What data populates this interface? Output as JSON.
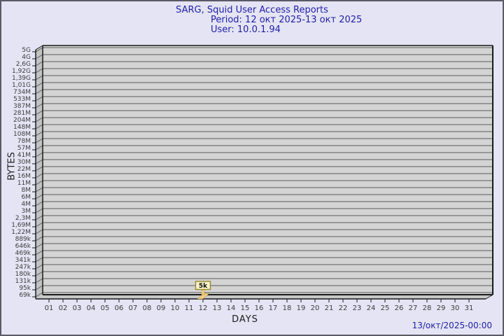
{
  "header": {
    "title": "SARG, Squid User Access Reports",
    "period": "Period: 12 окт 2025-13 окт 2025",
    "user": "User: 10.0.1.94"
  },
  "footer": {
    "timestamp": "13/окт/2025-00:00"
  },
  "chart_data": {
    "type": "bar",
    "title": "SARG, Squid User Access Reports",
    "subtitle": [
      "Period: 12 окт 2025-13 окт 2025",
      "User: 10.0.1.94"
    ],
    "xlabel": "DAYS",
    "ylabel": "BYTES",
    "grid": true,
    "legend": "none",
    "y_tick_labels": [
      "5G",
      "4G",
      "2,6G",
      "1,92G",
      "1,39G",
      "1,01G",
      "734M",
      "533M",
      "387M",
      "281M",
      "204M",
      "148M",
      "108M",
      "78M",
      "57M",
      "41M",
      "30M",
      "22M",
      "16M",
      "11M",
      "8M",
      "6M",
      "4M",
      "3M",
      "2,3M",
      "1,69M",
      "1,22M",
      "889k",
      "646k",
      "469k",
      "341k",
      "247k",
      "180k",
      "131k",
      "95k",
      "69k"
    ],
    "x_tick_labels": [
      "01",
      "02",
      "03",
      "04",
      "05",
      "06",
      "07",
      "08",
      "09",
      "10",
      "11",
      "12",
      "13",
      "14",
      "15",
      "16",
      "17",
      "18",
      "19",
      "20",
      "21",
      "22",
      "23",
      "24",
      "25",
      "26",
      "27",
      "28",
      "29",
      "30",
      "31"
    ],
    "bars": [
      {
        "day": "12",
        "value_label": "5k"
      }
    ],
    "colors": {
      "page_bg": "#e4e4f4",
      "border": "#5a5a66",
      "title_text": "#2121a8",
      "plot_bg": "#d4d4d4",
      "wall_bg": "#c2c2c2",
      "floor_bg": "#c8c8c8",
      "grid_line": "#5c5c5c",
      "axis_line": "#1a1a1a",
      "tick_text": "#3c3c3c",
      "bar_fill": "#f0cd7e",
      "bar_edge": "#b89448",
      "bar_label_bg": "#f7f3c9",
      "bar_label_border": "#9a8c2e",
      "bar_label_text": "#111111"
    }
  }
}
